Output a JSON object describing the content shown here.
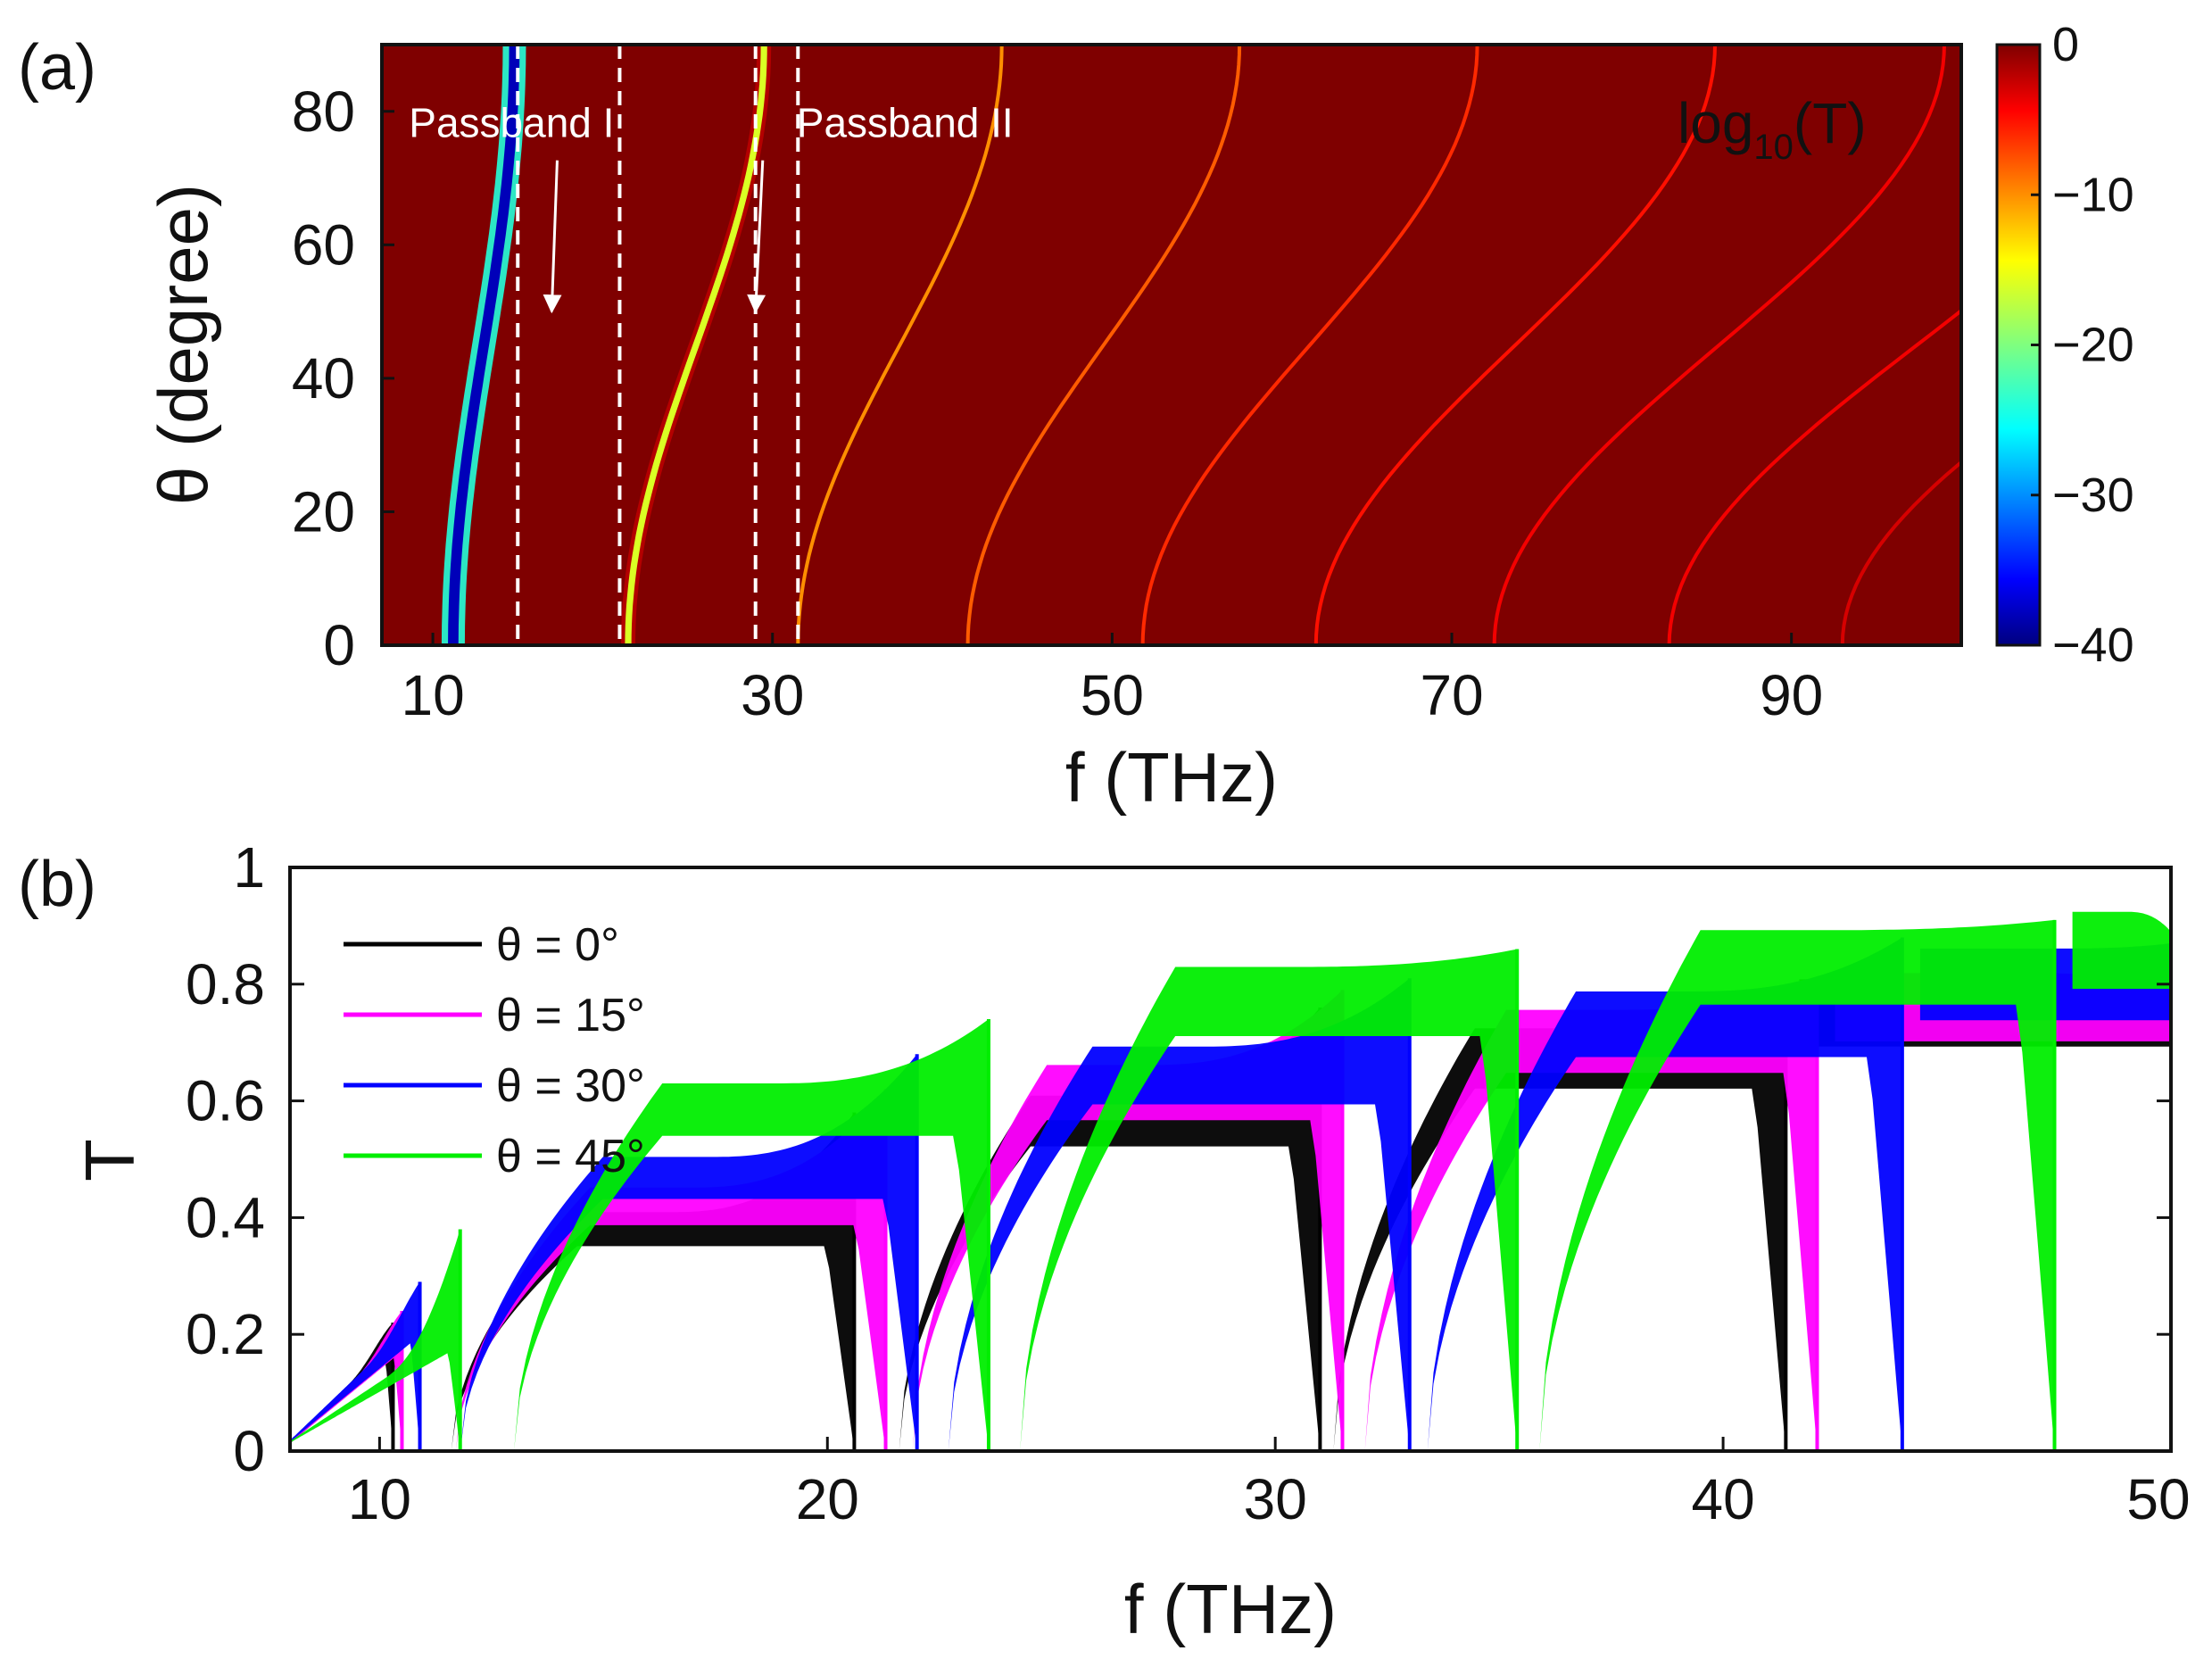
{
  "chart_data": [
    {
      "panel": "(a)",
      "type": "heatmap",
      "title": "",
      "xlabel": "f (THz)",
      "ylabel": "θ (degree)",
      "xlim": [
        7,
        100
      ],
      "ylim": [
        0,
        90
      ],
      "xticks": [
        10,
        30,
        50,
        70,
        90
      ],
      "yticks": [
        0,
        20,
        40,
        60,
        80
      ],
      "colorbar": {
        "label_main": "log",
        "label_sub": "10",
        "label_tail": "(T)",
        "ticks": [
          "0",
          "−10",
          "−20",
          "−30",
          "−40"
        ],
        "range": [
          -40,
          0
        ]
      },
      "background_color": "#7f0000",
      "annotations": [
        {
          "text": "Passband I",
          "x": 21,
          "y": 78,
          "arrow_to": [
            17,
            50
          ]
        },
        {
          "text": "Passband II",
          "x": 31,
          "y": 78,
          "arrow_to": [
            29,
            50
          ]
        }
      ],
      "dashed_lines_f": [
        15.0,
        21.0,
        29.0,
        31.5
      ],
      "mode_curves": [
        {
          "f0": 11.2,
          "f90": 14.8,
          "min_log10T": -38
        },
        {
          "f0": 21.5,
          "f90": 29.5,
          "min_log10T": -16
        },
        {
          "f0": 31.5,
          "f90": 43.5,
          "min_log10T": -10
        },
        {
          "f0": 41.5,
          "f90": 57.5,
          "min_log10T": -8
        },
        {
          "f0": 51.8,
          "f90": 71.5,
          "min_log10T": -6
        },
        {
          "f0": 62.0,
          "f90": 85.5,
          "min_log10T": -5
        },
        {
          "f0": 72.5,
          "f90": 99.0,
          "min_log10T": -4
        },
        {
          "f0": 82.8,
          "f90": 112.0,
          "min_log10T": -4
        },
        {
          "f0": 93.0,
          "f90": 126.0,
          "min_log10T": -3
        }
      ]
    },
    {
      "panel": "(b)",
      "type": "line",
      "title": "",
      "xlabel": "f (THz)",
      "ylabel": "T",
      "xlim": [
        8,
        50
      ],
      "ylim": [
        0,
        1
      ],
      "xticks": [
        10,
        20,
        30,
        40,
        50
      ],
      "yticks": [
        "0",
        "0.2",
        "0.4",
        "0.6",
        "0.8",
        "1"
      ],
      "legend_position": "top-left",
      "series": [
        {
          "name": "θ = 0°",
          "color": "#000000",
          "band_edges": [
            [
              8.0,
              10.3
            ],
            [
              11.6,
              20.6
            ],
            [
              21.6,
              31.0
            ],
            [
              31.3,
              41.4
            ],
            [
              41.7,
              50
            ]
          ],
          "band_peaks": [
            0.22,
            0.58,
            0.76,
            0.77,
            0.76
          ],
          "lower_envelope": [
            0.18,
            0.39,
            0.58,
            0.69,
            0.77
          ]
        },
        {
          "name": "θ = 15°",
          "color": "#ff00ff",
          "band_edges": [
            [
              8.0,
              10.5
            ],
            [
              11.7,
              21.3
            ],
            [
              21.9,
              31.5
            ],
            [
              32.0,
              42.1
            ],
            [
              42.5,
              50
            ]
          ],
          "band_peaks": [
            0.24,
            0.62,
            0.79,
            0.8,
            0.8
          ],
          "lower_envelope": [
            0.19,
            0.43,
            0.63,
            0.72,
            0.78
          ]
        },
        {
          "name": "θ = 30°",
          "color": "#0000ff",
          "band_edges": [
            [
              8.0,
              10.9
            ],
            [
              11.8,
              22.0
            ],
            [
              22.7,
              33.0
            ],
            [
              33.4,
              44.0
            ],
            [
              44.4,
              50
            ]
          ],
          "band_peaks": [
            0.29,
            0.68,
            0.81,
            0.88,
            0.87
          ],
          "lower_envelope": [
            0.22,
            0.48,
            0.66,
            0.75,
            0.82
          ]
        },
        {
          "name": "θ = 45°",
          "color": "#00ee00",
          "band_edges": [
            [
              8.0,
              11.8
            ],
            [
              13.0,
              23.6
            ],
            [
              24.3,
              35.4
            ],
            [
              35.9,
              47.4
            ],
            [
              47.8,
              50
            ]
          ],
          "band_peaks": [
            0.38,
            0.74,
            0.86,
            0.91,
            0.89
          ],
          "lower_envelope": [
            0.2,
            0.6,
            0.79,
            0.85,
            0.88
          ]
        }
      ]
    }
  ]
}
